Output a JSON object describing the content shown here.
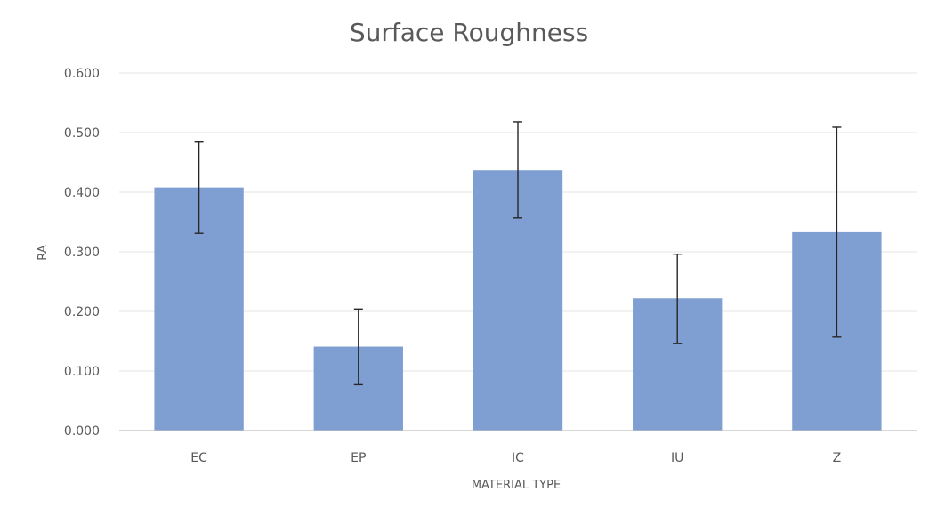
{
  "chart_data": {
    "type": "bar",
    "title": "Surface Roughness",
    "xlabel": "MATERIAL TYPE",
    "ylabel": "RA",
    "categories": [
      "EC",
      "EP",
      "IC",
      "IU",
      "Z"
    ],
    "values": [
      0.408,
      0.141,
      0.437,
      0.222,
      0.333
    ],
    "error_bars": {
      "lower": [
        0.331,
        0.077,
        0.357,
        0.146,
        0.157
      ],
      "upper": [
        0.484,
        0.204,
        0.518,
        0.296,
        0.509
      ]
    },
    "ylim": [
      0,
      0.6
    ],
    "yticks": [
      0,
      0.1,
      0.2,
      0.3,
      0.4,
      0.5,
      0.6
    ],
    "ytick_labels": [
      "0.000",
      "0.100",
      "0.200",
      "0.300",
      "0.400",
      "0.500",
      "0.600"
    ],
    "grid": true,
    "legend": "none",
    "colors": {
      "bar": "#7f9fd3",
      "error_bar": "#262626",
      "grid": "#e6e6e6",
      "axis": "#bfbfbf",
      "text": "#595959"
    }
  }
}
